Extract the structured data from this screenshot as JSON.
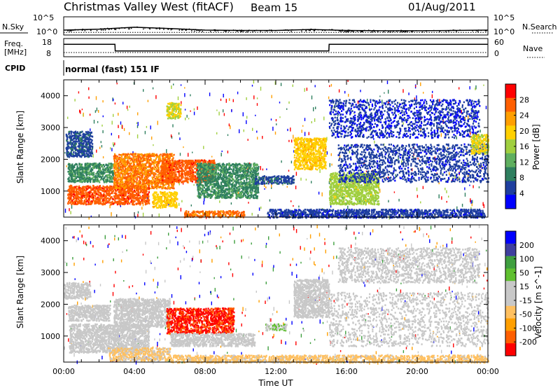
{
  "header": {
    "station": "Christmas Valley West (fitACF)",
    "beam": "Beam 15",
    "date": "01/Aug/2011"
  },
  "noise_panel": {
    "left_label": "N.Sky",
    "right_label": "N.Search",
    "left_ticks": [
      "10^5",
      "10^0"
    ],
    "right_ticks": [
      "10^5",
      "10^0"
    ]
  },
  "freq_panel": {
    "left_label_1": "Freq.",
    "left_label_2": "[MHz]",
    "right_label": "Nave",
    "left_ticks": [
      "18",
      "8"
    ],
    "right_ticks": [
      "60",
      "0"
    ]
  },
  "cpid": {
    "label": "CPID",
    "value": "normal (fast) 151 IF"
  },
  "colors": {
    "power_scale": [
      "#0000ff",
      "#1f3f9f",
      "#2f7f5f",
      "#5faf5f",
      "#a0cf3f",
      "#ffd000",
      "#ff9f00",
      "#ff5f00",
      "#ff0000"
    ],
    "velocity_scale": [
      "#ff0000",
      "#ff5f00",
      "#ff9f00",
      "#ffc060",
      "#c8c8c8",
      "#c8c8c8",
      "#60c030",
      "#3f9f3f",
      "#3f3f9f",
      "#0000ff"
    ]
  },
  "chart_data": [
    {
      "type": "line",
      "title": "N.Sky / N.Search",
      "x": [
        "00:00",
        "02:00",
        "04:00",
        "06:00",
        "08:00",
        "10:00",
        "12:00",
        "14:00",
        "16:00",
        "18:00",
        "20:00",
        "22:00",
        "24:00"
      ],
      "series": [
        {
          "name": "N.Sky",
          "values": [
            1.3,
            1.6,
            2.2,
            1.8,
            1.3,
            1.2,
            1.2,
            1.5,
            1.2,
            1.1,
            1.1,
            1.2,
            1.3
          ]
        },
        {
          "name": "N.Search",
          "values": [
            0.6,
            0.6,
            0.6,
            0.6,
            0.6,
            0.6,
            0.6,
            0.6,
            0.6,
            0.6,
            0.6,
            0.6,
            0.6
          ]
        }
      ]
    },
    {
      "type": "line",
      "title": "Freq.",
      "x": [
        "00:00",
        "02:54",
        "02:55",
        "15:00",
        "15:01",
        "24:00"
      ],
      "series": [
        {
          "name": "Freq.",
          "values": [
            15.5,
            15.5,
            11,
            11,
            15.5,
            15.5
          ]
        },
        {
          "name": "Nave",
          "values": [
            15,
            15,
            15,
            15,
            15,
            15
          ]
        }
      ],
      "ylim": [
        8,
        18
      ]
    },
    {
      "type": "heatmap",
      "title": "Power",
      "xlabel": "",
      "ylabel": "Slant Range [km]",
      "x_ticks": [
        "00:00",
        "04:00",
        "08:00",
        "12:00",
        "16:00",
        "20:00",
        "00:00"
      ],
      "y_ticks": [
        1000,
        2000,
        3000,
        4000
      ],
      "xlim": [
        0,
        24
      ],
      "ylim": [
        180,
        4500
      ],
      "colorbar_label": "Power [dB]",
      "colorbar_ticks": [
        "28",
        "24",
        "20",
        "16",
        "12",
        "8",
        "4"
      ],
      "colorbar_range": [
        0,
        32
      ],
      "regions": [
        {
          "t0": 0.2,
          "t1": 4.8,
          "r0": 600,
          "r1": 1200,
          "value": 27
        },
        {
          "t0": 0.2,
          "t1": 2.8,
          "r0": 1300,
          "r1": 1900,
          "value": 10
        },
        {
          "t0": 2.8,
          "t1": 6.2,
          "r0": 1100,
          "r1": 2200,
          "value": 25
        },
        {
          "t0": 5.0,
          "t1": 6.4,
          "r0": 500,
          "r1": 1000,
          "value": 20
        },
        {
          "t0": 5.5,
          "t1": 8.5,
          "r0": 1300,
          "r1": 2000,
          "value": 27
        },
        {
          "t0": 7.5,
          "t1": 11.0,
          "r0": 800,
          "r1": 1900,
          "value": 10
        },
        {
          "t0": 6.8,
          "t1": 10.2,
          "r0": 200,
          "r1": 400,
          "value": 26
        },
        {
          "t0": 0.1,
          "t1": 1.6,
          "r0": 2100,
          "r1": 2900,
          "value": 6
        },
        {
          "t0": 5.8,
          "t1": 6.6,
          "r0": 3300,
          "r1": 3800,
          "value": 18
        },
        {
          "t0": 10.8,
          "t1": 13.0,
          "r0": 1250,
          "r1": 1500,
          "value": 6
        },
        {
          "t0": 13.0,
          "t1": 14.8,
          "r0": 1700,
          "r1": 2700,
          "value": 20
        },
        {
          "t0": 15.0,
          "t1": 17.8,
          "r0": 600,
          "r1": 1600,
          "value": 16
        },
        {
          "t0": 15.5,
          "t1": 24.0,
          "r0": 1300,
          "r1": 2500,
          "value": 5
        },
        {
          "t0": 15.0,
          "t1": 23.5,
          "r0": 2700,
          "r1": 3900,
          "value": 4
        },
        {
          "t0": 23.0,
          "t1": 24.0,
          "r0": 2200,
          "r1": 2800,
          "value": 18
        },
        {
          "t0": 11.5,
          "t1": 23.8,
          "r0": 180,
          "r1": 450,
          "value": 5
        }
      ]
    },
    {
      "type": "heatmap",
      "title": "Velocity",
      "xlabel": "Time UT",
      "ylabel": "Slant Range [km]",
      "x_ticks": [
        "00:00",
        "04:00",
        "08:00",
        "12:00",
        "16:00",
        "20:00",
        "00:00"
      ],
      "y_ticks": [
        1000,
        2000,
        3000,
        4000
      ],
      "xlim": [
        0,
        24
      ],
      "ylim": [
        180,
        4500
      ],
      "colorbar_label": "Velocity [m s^-1]",
      "colorbar_ticks": [
        "200",
        "100",
        "50",
        "15",
        "-15",
        "-50",
        "-100",
        "-200"
      ],
      "colorbar_range": [
        -250,
        250
      ],
      "regions": [
        {
          "t0": 0.3,
          "t1": 4.8,
          "r0": 500,
          "r1": 1400,
          "value": 0
        },
        {
          "t0": 0.2,
          "t1": 2.6,
          "r0": 1500,
          "r1": 2000,
          "value": -5
        },
        {
          "t0": 2.8,
          "t1": 6.0,
          "r0": 1300,
          "r1": 2200,
          "value": 0
        },
        {
          "t0": 5.8,
          "t1": 9.6,
          "r0": 1100,
          "r1": 1900,
          "value": -210
        },
        {
          "t0": 6.0,
          "t1": 10.8,
          "r0": 700,
          "r1": 1100,
          "value": 0
        },
        {
          "t0": 2.5,
          "t1": 6.0,
          "r0": 250,
          "r1": 650,
          "value": -60
        },
        {
          "t0": 6.0,
          "t1": 24.0,
          "r0": 180,
          "r1": 420,
          "value": -70
        },
        {
          "t0": 11.4,
          "t1": 12.6,
          "r0": 1200,
          "r1": 1400,
          "value": 40
        },
        {
          "t0": 13.0,
          "t1": 15.0,
          "r0": 1600,
          "r1": 2800,
          "value": 5
        },
        {
          "t0": 15.0,
          "t1": 24.0,
          "r0": 700,
          "r1": 2400,
          "value": 0
        },
        {
          "t0": 15.5,
          "t1": 23.5,
          "r0": 2700,
          "r1": 3800,
          "value": 5
        },
        {
          "t0": 0.0,
          "t1": 1.5,
          "r0": 2200,
          "r1": 2700,
          "value": 0
        }
      ]
    }
  ]
}
